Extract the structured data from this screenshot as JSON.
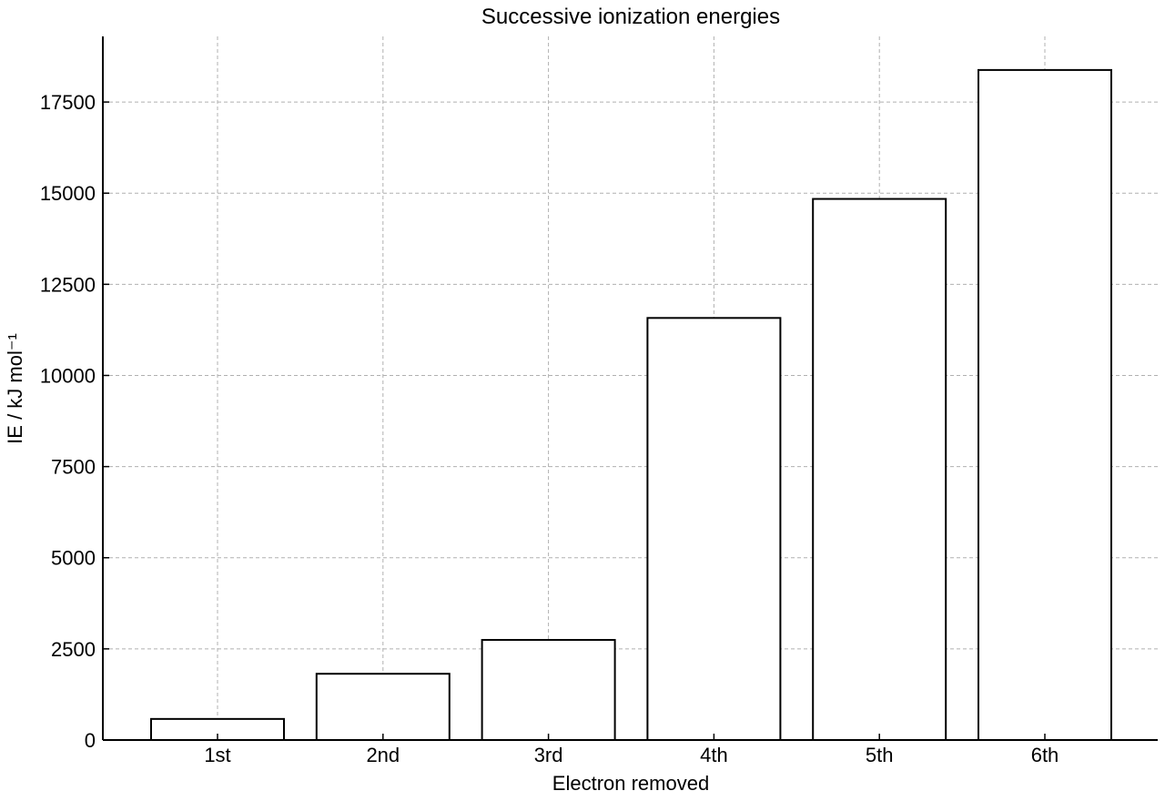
{
  "chart_data": {
    "type": "bar",
    "title": "Successive ionization energies",
    "xlabel": "Electron removed",
    "ylabel": "IE / kJ mol⁻¹",
    "categories": [
      "1st",
      "2nd",
      "3rd",
      "4th",
      "5th",
      "6th"
    ],
    "values": [
      578,
      1817,
      2745,
      11577,
      14842,
      18379
    ],
    "ylim": [
      0,
      19300
    ],
    "yticks": [
      0,
      2500,
      5000,
      7500,
      10000,
      12500,
      15000,
      17500
    ],
    "ytick_labels": [
      "0",
      "2500",
      "5000",
      "7500",
      "10000",
      "12500",
      "15000",
      "17500"
    ],
    "grid": true,
    "bar_fill": "#ffffff",
    "bar_edge": "#000000",
    "grid_color": "#b0b0b0"
  }
}
